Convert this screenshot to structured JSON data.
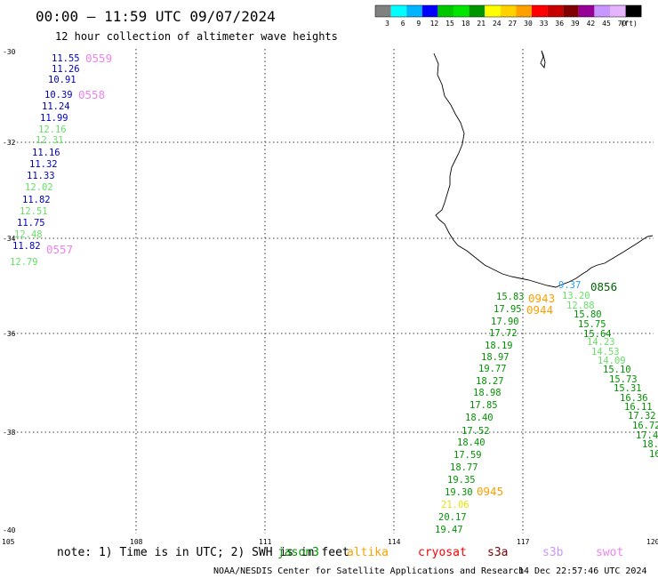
{
  "header": {
    "title": "00:00 – 11:59 UTC 09/07/2024",
    "subtitle": "12 hour collection of altimeter wave heights"
  },
  "color_scale": {
    "colors": [
      "#808080",
      "#00ffff",
      "#00b4ff",
      "#0000ff",
      "#00c800",
      "#00e600",
      "#009600",
      "#ffff00",
      "#ffd200",
      "#ffa000",
      "#ff0000",
      "#c80000",
      "#800000",
      "#960096",
      "#c896ff",
      "#e6b4ff",
      "#000000"
    ],
    "labels": [
      "3",
      "6",
      "9",
      "12",
      "15",
      "18",
      "21",
      "24",
      "27",
      "30",
      "33",
      "36",
      "39",
      "42",
      "45",
      "70",
      "(ft)"
    ]
  },
  "axes": {
    "lat_labels": [
      "-30",
      "-32",
      "-34",
      "-36",
      "-38",
      "-40"
    ],
    "lon_labels": [
      "105",
      "108",
      "111",
      "114",
      "117",
      "120"
    ]
  },
  "passes": [
    {
      "label": "0559",
      "color": "#ee82ee"
    },
    {
      "label": "0558",
      "color": "#ee82ee"
    },
    {
      "label": "0557",
      "color": "#ee82ee"
    },
    {
      "label": "0943",
      "color": "#ffa000"
    },
    {
      "label": "0944",
      "color": "#ffa000"
    },
    {
      "label": "0856",
      "color": "#006400"
    },
    {
      "label": "0945",
      "color": "#ffa000"
    }
  ],
  "wave_labels": [
    {
      "v": "11.55",
      "c": "#0000c8"
    },
    {
      "v": "11.26",
      "c": "#0000c8"
    },
    {
      "v": "10.91",
      "c": "#0000c8"
    },
    {
      "v": "10.39",
      "c": "#0000c8"
    },
    {
      "v": "11.24",
      "c": "#0000c8"
    },
    {
      "v": "11.99",
      "c": "#0000c8"
    },
    {
      "v": "12.16",
      "c": "#66e266"
    },
    {
      "v": "12.31",
      "c": "#66e266"
    },
    {
      "v": "11.16",
      "c": "#0000c8"
    },
    {
      "v": "11.32",
      "c": "#0000c8"
    },
    {
      "v": "11.33",
      "c": "#0000c8"
    },
    {
      "v": "12.02",
      "c": "#66e266"
    },
    {
      "v": "11.82",
      "c": "#0000c8"
    },
    {
      "v": "12.51",
      "c": "#66e266"
    },
    {
      "v": "11.75",
      "c": "#0000c8"
    },
    {
      "v": "12.48",
      "c": "#66e266"
    },
    {
      "v": "11.82",
      "c": "#0000c8"
    },
    {
      "v": "12.79",
      "c": "#66e266"
    },
    {
      "v": "15.83",
      "c": "#009600"
    },
    {
      "v": "17.95",
      "c": "#009600"
    },
    {
      "v": "17.90",
      "c": "#009600"
    },
    {
      "v": "17.72",
      "c": "#009600"
    },
    {
      "v": "18.19",
      "c": "#009600"
    },
    {
      "v": "18.97",
      "c": "#009600"
    },
    {
      "v": "19.77",
      "c": "#009600"
    },
    {
      "v": "18.27",
      "c": "#009600"
    },
    {
      "v": "18.98",
      "c": "#009600"
    },
    {
      "v": "17.85",
      "c": "#009600"
    },
    {
      "v": "18.40",
      "c": "#009600"
    },
    {
      "v": "17.52",
      "c": "#009600"
    },
    {
      "v": "18.40",
      "c": "#009600"
    },
    {
      "v": "17.59",
      "c": "#009600"
    },
    {
      "v": "18.77",
      "c": "#009600"
    },
    {
      "v": "19.35",
      "c": "#009600"
    },
    {
      "v": "19.30",
      "c": "#009600"
    },
    {
      "v": "21.06",
      "c": "#e6e600"
    },
    {
      "v": "20.17",
      "c": "#009600"
    },
    {
      "v": "19.47",
      "c": "#009600"
    },
    {
      "v": "9.37",
      "c": "#2a9df4"
    },
    {
      "v": "13.20",
      "c": "#66e266"
    },
    {
      "v": "12.88",
      "c": "#66e266"
    },
    {
      "v": "15.80",
      "c": "#009600"
    },
    {
      "v": "15.75",
      "c": "#009600"
    },
    {
      "v": "15.64",
      "c": "#009600"
    },
    {
      "v": "14.23",
      "c": "#66e266"
    },
    {
      "v": "14.53",
      "c": "#66e266"
    },
    {
      "v": "14.09",
      "c": "#66e266"
    },
    {
      "v": "15.10",
      "c": "#009600"
    },
    {
      "v": "15.73",
      "c": "#009600"
    },
    {
      "v": "15.31",
      "c": "#009600"
    },
    {
      "v": "16.36",
      "c": "#009600"
    },
    {
      "v": "16.11",
      "c": "#009600"
    },
    {
      "v": "17.32",
      "c": "#009600"
    },
    {
      "v": "16.72",
      "c": "#009600"
    },
    {
      "v": "17.4",
      "c": "#009600"
    },
    {
      "v": "18.",
      "c": "#009600"
    },
    {
      "v": "16",
      "c": "#009600"
    }
  ],
  "footer": {
    "note": "note: 1) Time is in UTC; 2) SWH is in feet",
    "satellites": [
      {
        "name": "jason3",
        "color": "#009600"
      },
      {
        "name": "altika",
        "color": "#ffa000"
      },
      {
        "name": "cryosat",
        "color": "#ff0000"
      },
      {
        "name": "s3a",
        "color": "#800000"
      },
      {
        "name": "s3b",
        "color": "#c896ff"
      },
      {
        "name": "swot",
        "color": "#ee82ee"
      }
    ],
    "credit": "NOAA/NESDIS Center for Satellite Applications and Research",
    "timestamp": "14 Dec 22:57:46 UTC 2024"
  }
}
